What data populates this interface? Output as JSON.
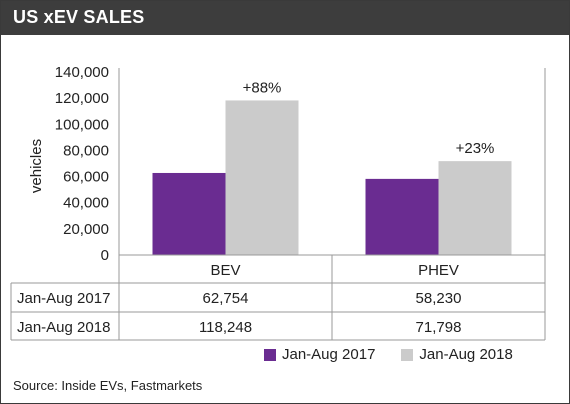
{
  "title": "US xEV SALES",
  "source": "Source: Inside EVs, Fastmarkets",
  "colors": {
    "series_2017": "#6a2c91",
    "series_2018": "#cbcbcb",
    "header_bg": "#3d3d3d",
    "grid": "#9a9a9a"
  },
  "chart_data": {
    "type": "bar",
    "title": "US xEV SALES",
    "ylabel": "vehicles",
    "xlabel": "",
    "ylim": [
      0,
      140000
    ],
    "yticks": [
      "0",
      "20,000",
      "40,000",
      "60,000",
      "80,000",
      "100,000",
      "120,000",
      "140,000"
    ],
    "categories": [
      "BEV",
      "PHEV"
    ],
    "series": [
      {
        "name": "Jan-Aug 2017",
        "values": [
          62754,
          58230
        ],
        "display": [
          "62,754",
          "58,230"
        ]
      },
      {
        "name": "Jan-Aug 2018",
        "values": [
          118248,
          71798
        ],
        "display": [
          "118,248",
          "71,798"
        ]
      }
    ],
    "annotations": [
      "+88%",
      "+23%"
    ],
    "legend_position": "bottom",
    "grid": false
  }
}
